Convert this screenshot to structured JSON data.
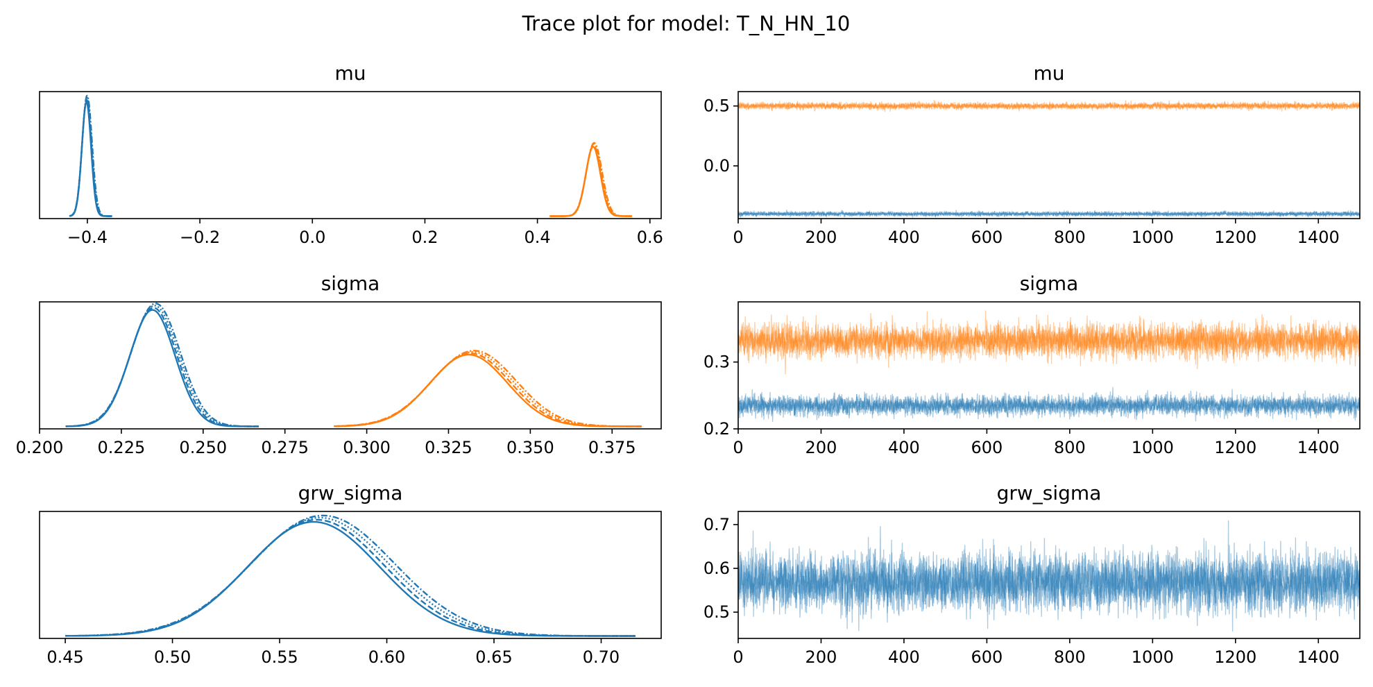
{
  "figure_title": "Trace plot for model: T_N_HN_10",
  "colors": {
    "chain_group_1": "#1f77b4",
    "chain_group_2": "#ff7f0e"
  },
  "chart_data": [
    {
      "id": "mu_density",
      "type": "line",
      "title": "mu",
      "xlim": [
        -0.485,
        0.62
      ],
      "ylim": [
        0,
        1.05
      ],
      "xticks": [
        -0.4,
        -0.2,
        0.0,
        0.2,
        0.4,
        0.6
      ],
      "xtick_labels": [
        "−0.4",
        "−0.2",
        "0.0",
        "0.2",
        "0.4",
        "0.6"
      ],
      "yticks": [],
      "ytick_labels": [],
      "densities": [
        {
          "color": "#1f77b4",
          "mean": -0.401,
          "sd": 0.0085,
          "peak": 0.97,
          "range": [
            -0.432,
            -0.356
          ],
          "chains": 4
        },
        {
          "color": "#ff7f0e",
          "mean": 0.5,
          "sd": 0.0135,
          "peak": 0.59,
          "range": [
            0.422,
            0.568
          ],
          "chains": 4
        }
      ]
    },
    {
      "id": "mu_trace",
      "type": "line",
      "title": "mu",
      "xlim": [
        0,
        1500
      ],
      "ylim": [
        -0.44,
        0.62
      ],
      "xticks": [
        0,
        200,
        400,
        600,
        800,
        1000,
        1200,
        1400
      ],
      "xtick_labels": [
        "0",
        "200",
        "400",
        "600",
        "800",
        "1000",
        "1200",
        "1400"
      ],
      "yticks": [
        0.5,
        0.0
      ],
      "ytick_labels": [
        "0.5",
        "0.0"
      ],
      "traces": [
        {
          "color": "#ff7f0e",
          "mean": 0.5,
          "sd": 0.0135,
          "draws": 1500,
          "chains": 4
        },
        {
          "color": "#1f77b4",
          "mean": -0.401,
          "sd": 0.0085,
          "draws": 1500,
          "chains": 4
        }
      ]
    },
    {
      "id": "sigma_density",
      "type": "line",
      "title": "sigma",
      "xlim": [
        0.2,
        0.39
      ],
      "ylim": [
        0,
        1.05
      ],
      "xticks": [
        0.2,
        0.225,
        0.25,
        0.275,
        0.3,
        0.325,
        0.35,
        0.375
      ],
      "xtick_labels": [
        "0.200",
        "0.225",
        "0.250",
        "0.275",
        "0.300",
        "0.325",
        "0.350",
        "0.375"
      ],
      "yticks": [],
      "ytick_labels": [],
      "densities": [
        {
          "color": "#1f77b4",
          "mean": 0.235,
          "sd": 0.0072,
          "peak": 0.99,
          "range": [
            0.208,
            0.267
          ],
          "chains": 4
        },
        {
          "color": "#ff7f0e",
          "mean": 0.332,
          "sd": 0.0123,
          "peak": 0.61,
          "range": [
            0.29,
            0.384
          ],
          "chains": 4
        }
      ]
    },
    {
      "id": "sigma_trace",
      "type": "line",
      "title": "sigma",
      "xlim": [
        0,
        1500
      ],
      "ylim": [
        0.2,
        0.39
      ],
      "xticks": [
        0,
        200,
        400,
        600,
        800,
        1000,
        1200,
        1400
      ],
      "xtick_labels": [
        "0",
        "200",
        "400",
        "600",
        "800",
        "1000",
        "1200",
        "1400"
      ],
      "yticks": [
        0.3,
        0.2
      ],
      "ytick_labels": [
        "0.3",
        "0.2"
      ],
      "traces": [
        {
          "color": "#ff7f0e",
          "mean": 0.332,
          "sd": 0.0123,
          "draws": 1500,
          "chains": 4
        },
        {
          "color": "#1f77b4",
          "mean": 0.235,
          "sd": 0.0072,
          "draws": 1500,
          "chains": 4
        }
      ]
    },
    {
      "id": "grw_sigma_density",
      "type": "line",
      "title": "grw_sigma",
      "xlim": [
        0.438,
        0.728
      ],
      "ylim": [
        0,
        1.05
      ],
      "xticks": [
        0.45,
        0.5,
        0.55,
        0.6,
        0.65,
        0.7
      ],
      "xtick_labels": [
        "0.45",
        "0.50",
        "0.55",
        "0.60",
        "0.65",
        "0.70"
      ],
      "yticks": [],
      "ytick_labels": [],
      "densities": [
        {
          "color": "#1f77b4",
          "mean": 0.568,
          "sd": 0.032,
          "peak": 0.97,
          "range": [
            0.45,
            0.716
          ],
          "chains": 4
        }
      ]
    },
    {
      "id": "grw_sigma_trace",
      "type": "line",
      "title": "grw_sigma",
      "xlim": [
        0,
        1500
      ],
      "ylim": [
        0.44,
        0.73
      ],
      "xticks": [
        0,
        200,
        400,
        600,
        800,
        1000,
        1200,
        1400
      ],
      "xtick_labels": [
        "0",
        "200",
        "400",
        "600",
        "800",
        "1000",
        "1200",
        "1400"
      ],
      "yticks": [
        0.7,
        0.6,
        0.5
      ],
      "ytick_labels": [
        "0.7",
        "0.6",
        "0.5"
      ],
      "traces": [
        {
          "color": "#1f77b4",
          "mean": 0.568,
          "sd": 0.032,
          "draws": 1500,
          "chains": 4
        }
      ]
    }
  ]
}
